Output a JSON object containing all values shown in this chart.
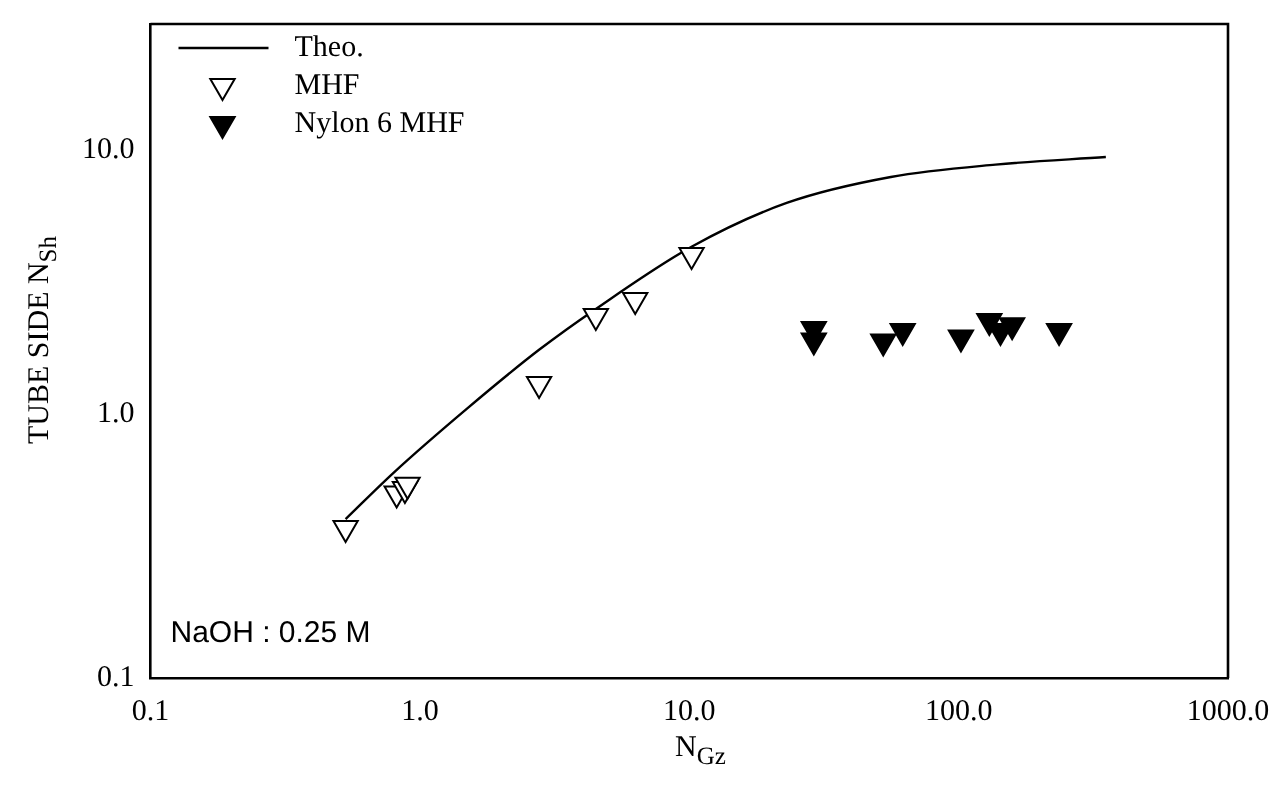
{
  "chart_data": {
    "type": "scatter",
    "xlabel": "N$_{Gz}$",
    "ylabel": "TUBE SIDE N$_{Sh}$",
    "log": "xy",
    "grid": false,
    "legend": "top left",
    "marker": "triangle",
    "xlim": [
      0.1,
      1000
    ],
    "xticks": [
      0.1,
      {
        "value": 1,
        "label": "1.0"
      },
      {
        "value": 10,
        "label": "10.0"
      },
      {
        "value": 100,
        "label": "100.0"
      },
      {
        "value": 1000,
        "label": "1000.0"
      }
    ],
    "ylim": [
      0.1,
      30
    ],
    "yticks": [
      0.1,
      {
        "value": 1,
        "label": "1.0"
      },
      {
        "value": 10,
        "label": "10.0"
      }
    ],
    "annotations": [
      "NaOH : 0.25 M"
    ],
    "series": [
      {
        "name": "Theo.",
        "type": "line",
        "color": "#000000",
        "marker": "none",
        "x": [
          0.53,
          0.8,
          1.5,
          2.77,
          4.5,
          10.2,
          23,
          56,
          137,
          352
        ],
        "values": [
          0.4,
          0.6,
          1.05,
          1.75,
          2.5,
          4.3,
          6.3,
          7.9,
          8.8,
          9.4
        ]
      },
      {
        "name": "MHF",
        "type": "scatter",
        "color": "#000000",
        "x": [
          0.53,
          0.82,
          0.88,
          0.9,
          2.77,
          4.5,
          6.3,
          10.2
        ],
        "values": [
          0.37,
          0.5,
          0.52,
          0.54,
          1.3,
          2.35,
          2.7,
          4.0
        ]
      },
      {
        "name": "Nylon 6 MHF",
        "type": "scatter",
        "color": "#000000",
        "x": [
          29,
          29,
          52.5,
          62,
          102,
          130,
          143,
          158,
          236
        ],
        "values": [
          1.9,
          2.1,
          1.88,
          2.06,
          1.95,
          2.25,
          2.06,
          2.17,
          2.06
        ]
      }
    ]
  }
}
